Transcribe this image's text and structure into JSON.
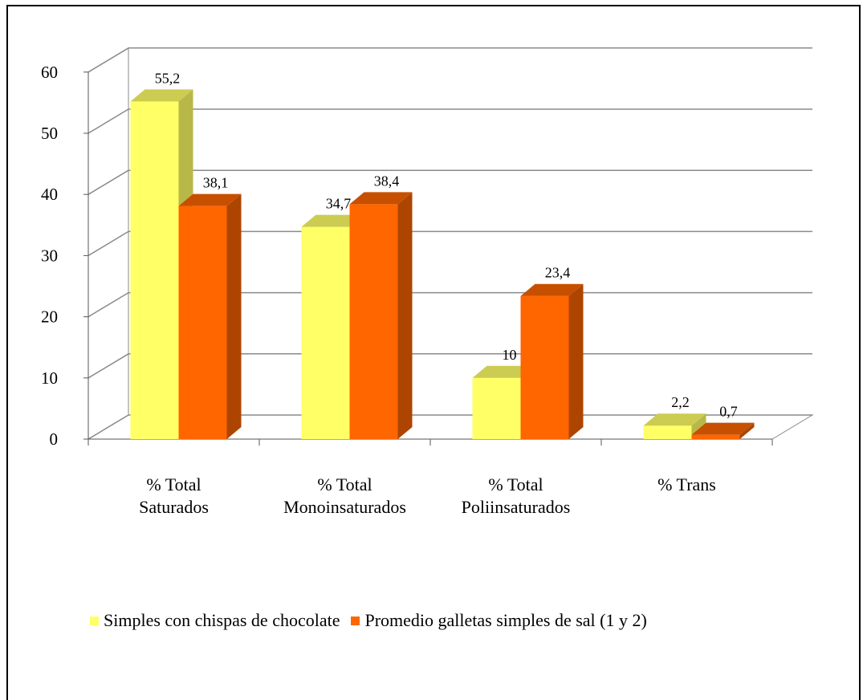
{
  "chart_data": {
    "type": "bar",
    "categories": [
      [
        "% Total",
        "Saturados"
      ],
      [
        "% Total",
        "Monoinsaturados"
      ],
      [
        "% Total",
        "Poliinsaturados"
      ],
      [
        "%  Trans"
      ]
    ],
    "series": [
      {
        "name": "Simples con chispas de chocolate",
        "values": [
          55.2,
          34.7,
          10,
          2.2
        ],
        "labels": [
          "55,2",
          "34,7",
          "10",
          "2,2"
        ],
        "color": "#FFFF66"
      },
      {
        "name": "Promedio galletas simples de sal (1 y 2)",
        "values": [
          38.1,
          38.4,
          23.4,
          0.7
        ],
        "labels": [
          "38,1",
          "38,4",
          "23,4",
          "0,7"
        ],
        "color": "#FF6600"
      }
    ],
    "title": "",
    "xlabel": "",
    "ylabel": "",
    "ylim": [
      0,
      60
    ],
    "yticks": [
      "0",
      "10",
      "20",
      "30",
      "40",
      "50",
      "60"
    ],
    "grid": true,
    "legend_position": "bottom"
  }
}
